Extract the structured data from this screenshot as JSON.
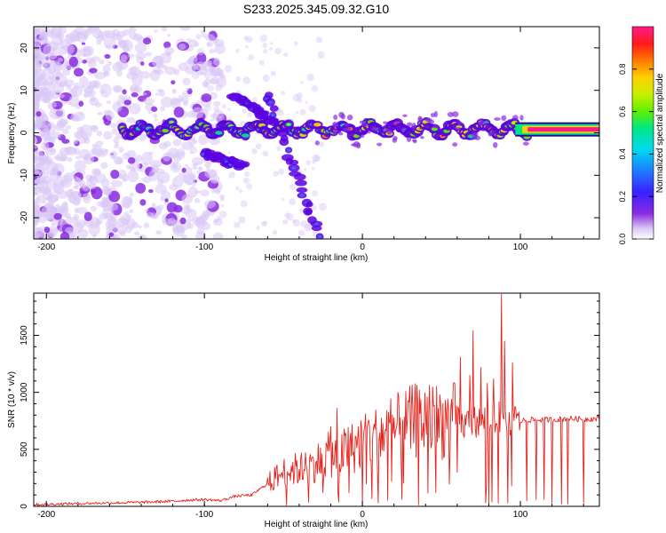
{
  "figure": {
    "title": "S233.2025.345.09.32.G10"
  },
  "colors": {
    "background": "#ffffff",
    "frame": "#000000",
    "snr_line": "#e8221b",
    "spec_faint": "#d9c6f5",
    "spec_mid": "#8a2be2",
    "spec_strong": "#5a00e0",
    "colormap": [
      "#d9c6f5",
      "#8a2be2",
      "#3a20ff",
      "#1e7bff",
      "#00d9f0",
      "#00e68a",
      "#5cf000",
      "#c8f000",
      "#ffd000",
      "#ff7a00",
      "#ff1a1a",
      "#ff1a8c"
    ]
  },
  "chart_data": [
    {
      "type": "heatmap",
      "title": "",
      "xlabel": "Height of straight line (km)",
      "ylabel": "Frequency (Hz)",
      "xlim": [
        -208,
        150
      ],
      "ylim": [
        -25,
        25
      ],
      "x_ticks": [
        "-200",
        "-100",
        "0",
        "100"
      ],
      "y_ticks": [
        "-20",
        "-10",
        "0",
        "10",
        "20"
      ],
      "colorbar": {
        "label": "Normalized spectral amplitude",
        "range": [
          0.0,
          1.0
        ],
        "ticks": [
          "0.0",
          "0.2",
          "0.4",
          "0.6",
          "0.8"
        ],
        "colormap": "rainbow"
      },
      "features": {
        "main_tone_frequency_hz": 0.8,
        "steady_tone_start_km": 108,
        "steady_tone_amplitude": 1.0,
        "diverging_branches": [
          {
            "x_start": -82,
            "x_end": -57,
            "y_start": 9,
            "y_end": 3
          },
          {
            "x_start": -60,
            "x_end": -28,
            "y_start": 9,
            "y_end": -24
          },
          {
            "x_start": -100,
            "x_end": -75,
            "y_start": -5,
            "y_end": -8
          }
        ]
      },
      "grid": false
    },
    {
      "type": "line",
      "title": "",
      "xlabel": "Height of straight line (km)",
      "ylabel": "SNR (10 * v/v)",
      "xlim": [
        -208,
        150
      ],
      "ylim": [
        0,
        1870
      ],
      "x_ticks": [
        "-200",
        "-100",
        "0",
        "100"
      ],
      "y_ticks": [
        "0",
        "500",
        "1000",
        "1500"
      ],
      "series": [
        {
          "x": [
            -208,
            -200,
            -180,
            -160,
            -140,
            -120,
            -110,
            -100,
            -90,
            -80,
            -70,
            -60,
            -55,
            -50,
            -45,
            -40,
            -35,
            -30,
            -25,
            -20,
            -15,
            -10,
            -5,
            0,
            5,
            10,
            15,
            20,
            25,
            30,
            35,
            40,
            45,
            50,
            55,
            60,
            62,
            65,
            68,
            70,
            73,
            76,
            80,
            83,
            86,
            88,
            90,
            92,
            95,
            100,
            105,
            110,
            120,
            130,
            140,
            150
          ],
          "values": [
            15,
            18,
            25,
            30,
            35,
            45,
            55,
            60,
            50,
            90,
            100,
            200,
            250,
            300,
            320,
            330,
            340,
            380,
            420,
            460,
            430,
            500,
            520,
            580,
            600,
            610,
            650,
            680,
            700,
            730,
            760,
            770,
            760,
            740,
            750,
            760,
            700,
            720,
            760,
            750,
            740,
            760,
            770,
            760,
            800,
            760,
            760,
            740,
            760,
            750,
            760,
            760,
            760,
            770,
            765,
            770
          ]
        }
      ],
      "spikes": [
        {
          "x": -70,
          "y": 90
        },
        {
          "x": -36,
          "y": 470
        },
        {
          "x": -20,
          "y": 700
        },
        {
          "x": -16,
          "y": 860
        },
        {
          "x": 2,
          "y": 810
        },
        {
          "x": 22,
          "y": 720
        },
        {
          "x": 45,
          "y": 880
        },
        {
          "x": 53,
          "y": 820
        },
        {
          "x": 62,
          "y": 1310
        },
        {
          "x": 68,
          "y": 1150
        },
        {
          "x": 70,
          "y": 1540
        },
        {
          "x": 75,
          "y": 1220
        },
        {
          "x": 79,
          "y": 1080
        },
        {
          "x": 83,
          "y": 1120
        },
        {
          "x": 86,
          "y": 1600
        },
        {
          "x": 88,
          "y": 1860
        },
        {
          "x": 90,
          "y": 1450
        },
        {
          "x": 92,
          "y": 1280
        },
        {
          "x": 95,
          "y": 1260
        }
      ],
      "dropouts": [
        {
          "x": -15,
          "y": 40
        },
        {
          "x": 0,
          "y": 30
        },
        {
          "x": 10,
          "y": 30
        },
        {
          "x": 25,
          "y": 60
        },
        {
          "x": 60,
          "y": 300
        },
        {
          "x": 78,
          "y": 30
        },
        {
          "x": 80,
          "y": 20
        },
        {
          "x": 82,
          "y": 40
        },
        {
          "x": 86,
          "y": 30
        },
        {
          "x": 92,
          "y": 30
        },
        {
          "x": 104,
          "y": 50
        },
        {
          "x": 110,
          "y": 60
        },
        {
          "x": 115,
          "y": 60
        },
        {
          "x": 120,
          "y": 30
        },
        {
          "x": 126,
          "y": 20
        },
        {
          "x": 130,
          "y": 20
        },
        {
          "x": 140,
          "y": 30
        }
      ],
      "grid": false
    }
  ]
}
